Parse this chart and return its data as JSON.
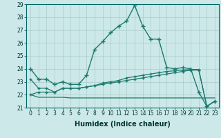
{
  "xlabel": "Humidex (Indice chaleur)",
  "bg_color": "#cce8e8",
  "grid_color": "#aacccc",
  "line_color": "#1a7a6e",
  "x": [
    0,
    1,
    2,
    3,
    4,
    5,
    6,
    7,
    8,
    9,
    10,
    11,
    12,
    13,
    14,
    15,
    16,
    17,
    18,
    19,
    20,
    21,
    22,
    23
  ],
  "line1": [
    24.0,
    23.2,
    23.2,
    22.8,
    23.0,
    22.8,
    22.8,
    23.5,
    25.5,
    26.1,
    26.8,
    27.3,
    27.7,
    28.9,
    27.3,
    26.3,
    26.3,
    24.1,
    24.0,
    24.1,
    24.0,
    22.2,
    21.1,
    21.5
  ],
  "line2": [
    23.2,
    22.5,
    22.5,
    22.2,
    22.5,
    22.5,
    22.5,
    22.6,
    22.7,
    22.9,
    23.0,
    23.1,
    23.3,
    23.4,
    23.5,
    23.6,
    23.7,
    23.8,
    23.85,
    23.9,
    23.95,
    23.95,
    21.1,
    21.5
  ],
  "line3": [
    22.0,
    22.2,
    22.2,
    22.2,
    22.5,
    22.5,
    22.5,
    22.6,
    22.7,
    22.8,
    22.9,
    23.0,
    23.1,
    23.2,
    23.3,
    23.4,
    23.5,
    23.6,
    23.7,
    23.8,
    23.9,
    23.9,
    21.1,
    21.5
  ],
  "line4": [
    22.0,
    21.8,
    21.8,
    21.8,
    21.8,
    21.75,
    21.75,
    21.75,
    21.75,
    21.75,
    21.75,
    21.75,
    21.75,
    21.75,
    21.75,
    21.75,
    21.75,
    21.75,
    21.75,
    21.75,
    21.75,
    21.75,
    21.75,
    21.75
  ],
  "ylim": [
    21,
    29
  ],
  "xlim": [
    -0.5,
    23.5
  ],
  "yticks": [
    21,
    22,
    23,
    24,
    25,
    26,
    27,
    28,
    29
  ],
  "xticks": [
    0,
    1,
    2,
    3,
    4,
    5,
    6,
    7,
    8,
    9,
    10,
    11,
    12,
    13,
    14,
    15,
    16,
    17,
    18,
    19,
    20,
    21,
    22,
    23
  ]
}
